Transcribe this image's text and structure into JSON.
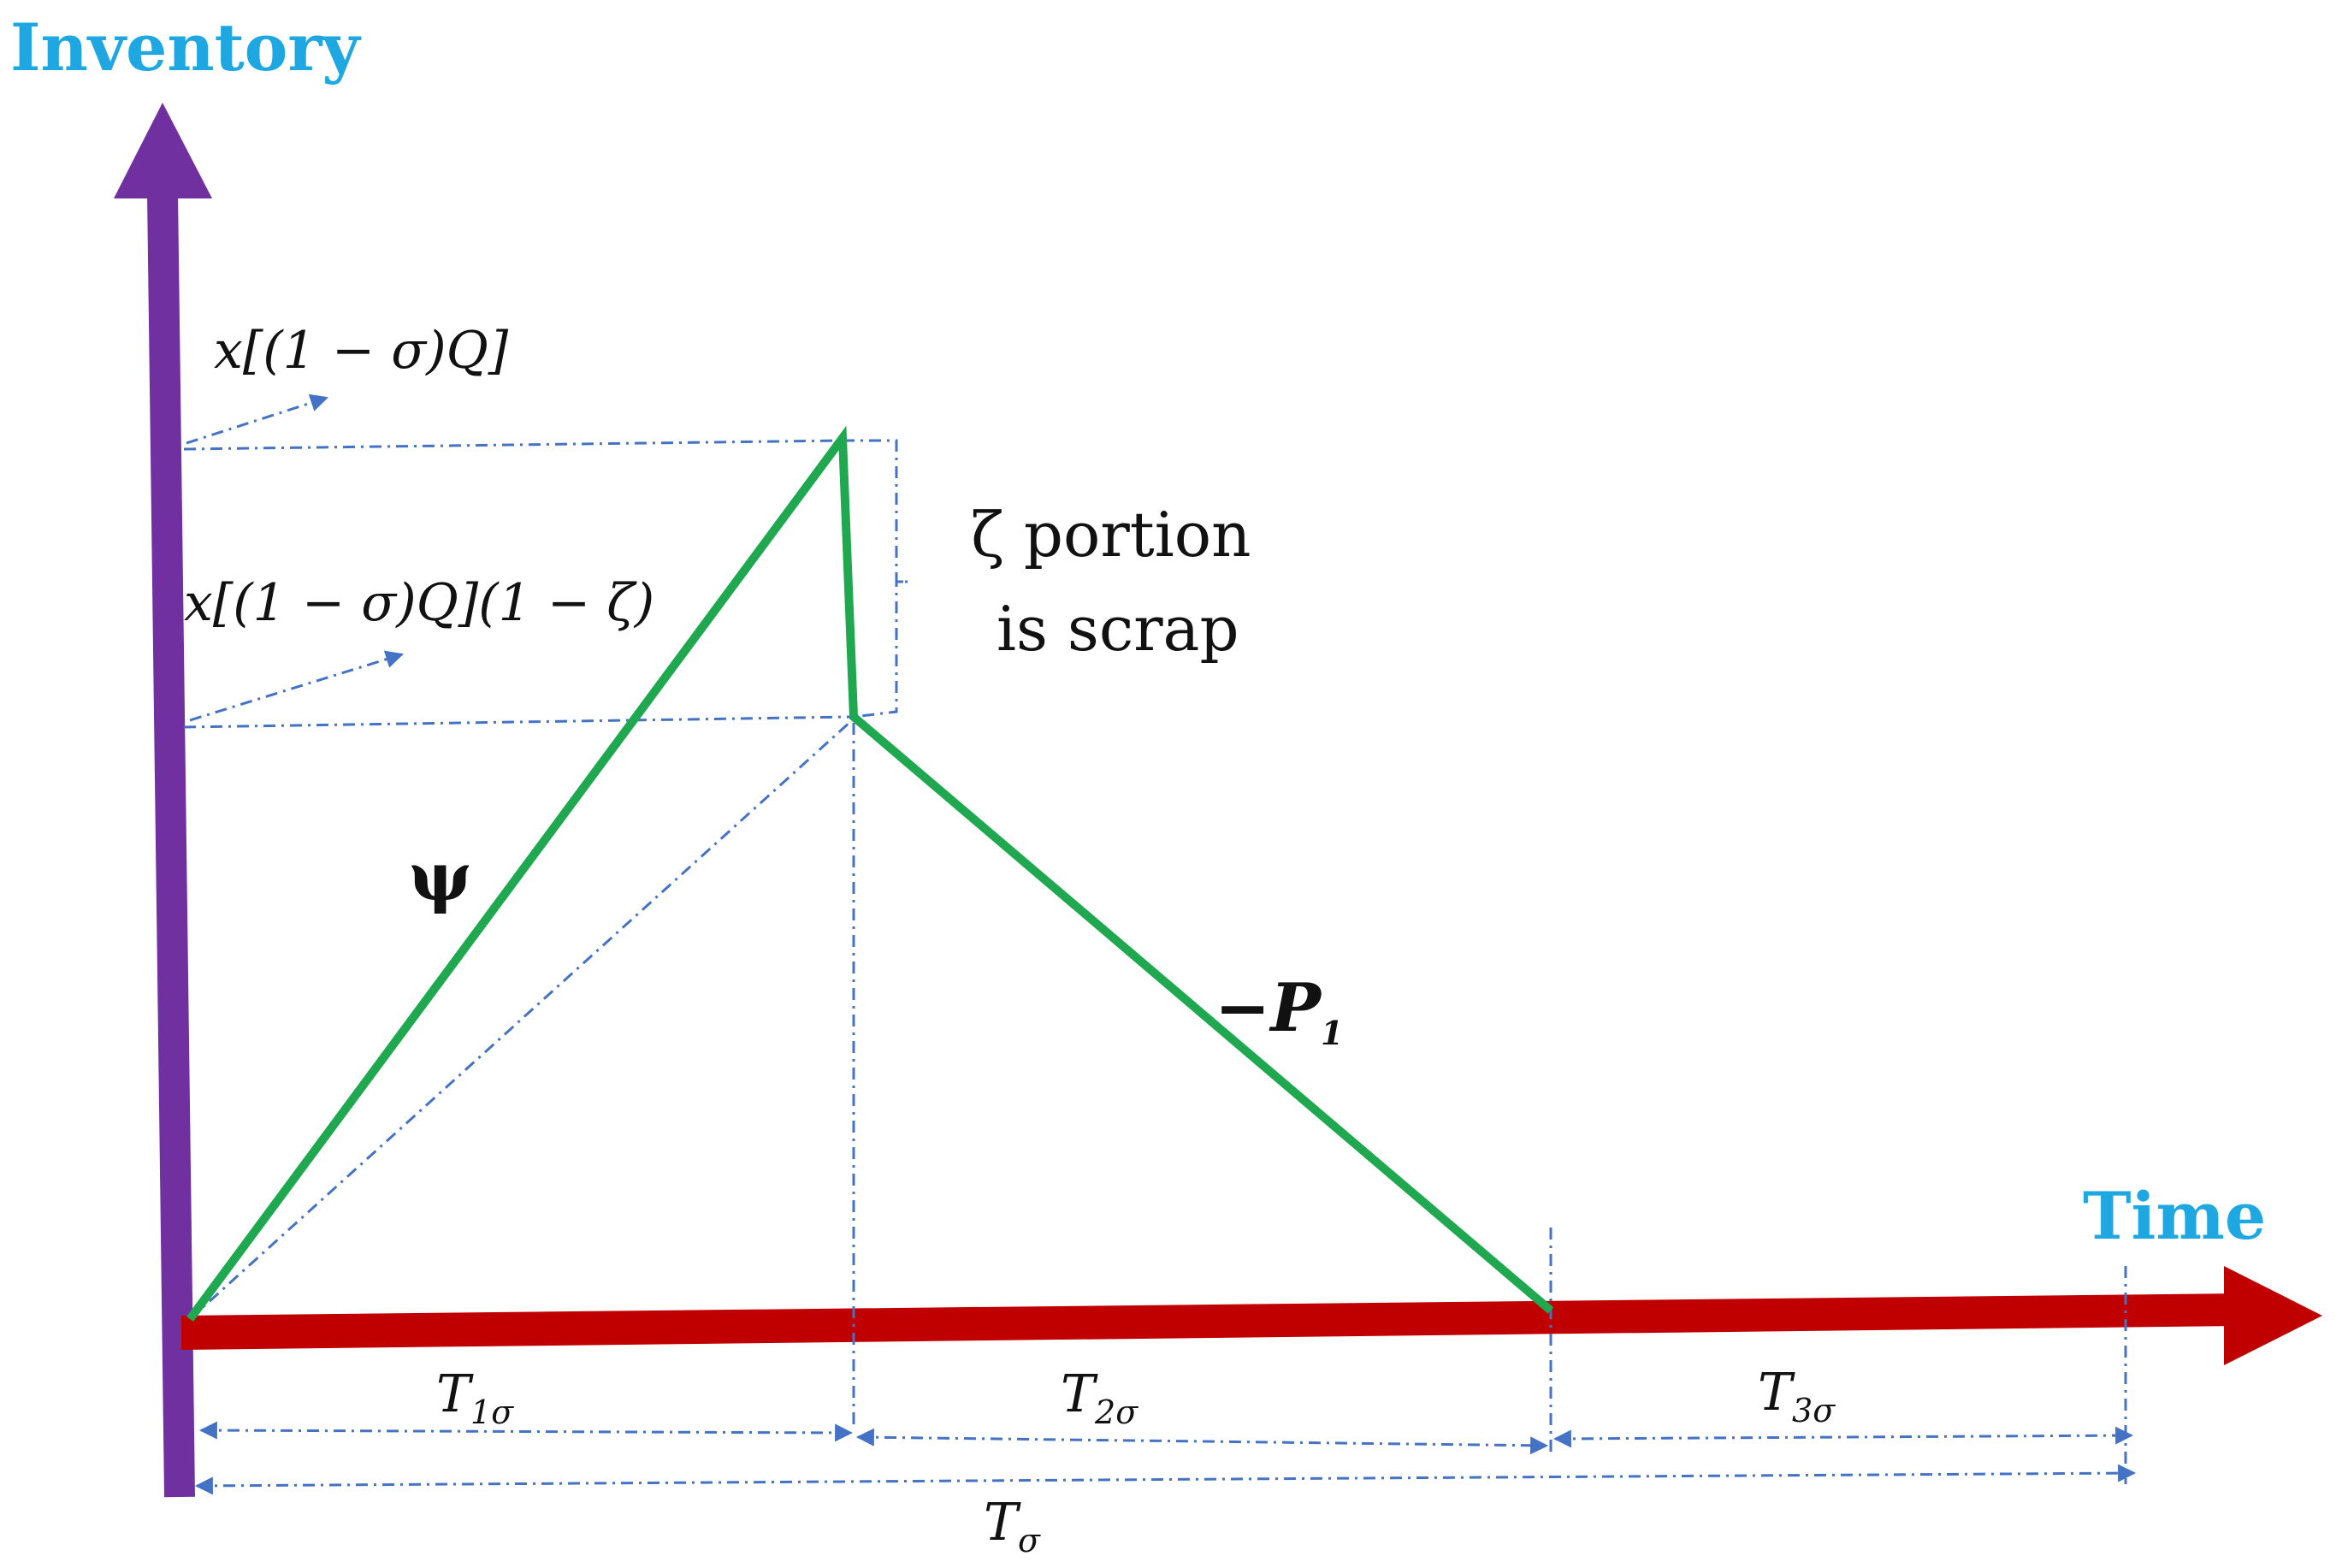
{
  "axes": {
    "y_title": "Inventory",
    "x_title": "Time"
  },
  "labels": {
    "max_level": "x[(1 − σ)Q]",
    "after_scrap_level": "x[(1 − σ)Q](1 − ζ)",
    "scrap_note_line1": "ζ portion",
    "scrap_note_line2": "is scrap",
    "production_rate": "ψ",
    "demand_rate": "−P",
    "demand_rate_sub": "1"
  },
  "periods": {
    "t1": "T",
    "t1_sub": "1σ",
    "t2": "T",
    "t2_sub": "2σ",
    "t3": "T",
    "t3_sub": "3σ",
    "total": "T",
    "total_sub": "σ"
  },
  "colors": {
    "y_axis": "#7030a0",
    "x_axis": "#c00000",
    "inventory_line": "#1fa84f",
    "guide": "#4472c4",
    "axis_title": "#1ea7e1",
    "text": "#111111"
  }
}
